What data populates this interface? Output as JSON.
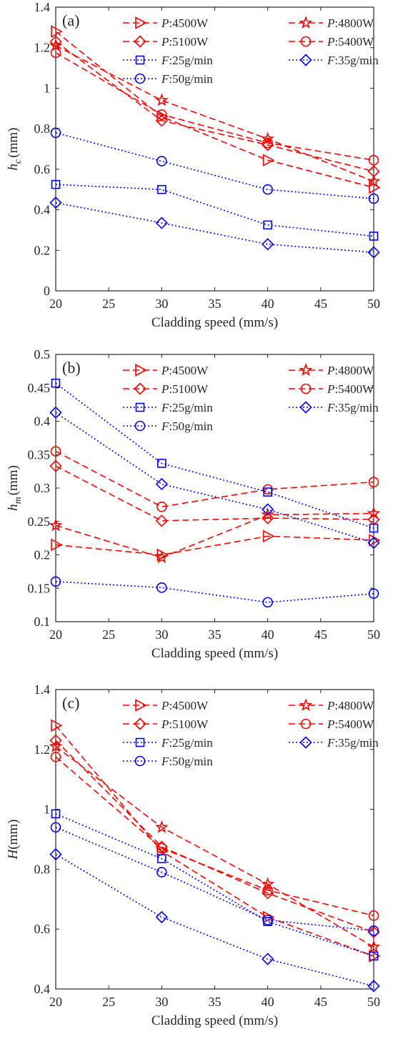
{
  "chart_data": [
    {
      "type": "line",
      "panel_label": "(a)",
      "xlabel": "Cladding speed (mm/s)",
      "ylabel": {
        "base": "h",
        "sub": "c",
        "unit": "(mm)"
      },
      "xlim": [
        20,
        50
      ],
      "ylim": [
        0,
        1.4
      ],
      "xticks": [
        "20",
        "25",
        "30",
        "35",
        "40",
        "45",
        "50"
      ],
      "yticks": [
        "0",
        "0.2",
        "0.4",
        "0.6",
        "0.8",
        "1",
        "1.2",
        "1.4"
      ],
      "grid": false,
      "legend_position": "top-right",
      "x": [
        20,
        30,
        40,
        50
      ],
      "series": [
        {
          "name": "P:4500W",
          "values": [
            1.28,
            0.86,
            0.645,
            0.51
          ],
          "color": "#ff0000",
          "marker": "triangle-right",
          "style": "dashed"
        },
        {
          "name": "P:4800W",
          "values": [
            1.21,
            0.94,
            0.75,
            0.54
          ],
          "color": "#ff0000",
          "marker": "pentagram",
          "style": "dashed"
        },
        {
          "name": "P:5100W",
          "values": [
            1.23,
            0.84,
            0.72,
            0.59
          ],
          "color": "#ff0000",
          "marker": "diamond",
          "style": "dashed"
        },
        {
          "name": "P:5400W",
          "values": [
            1.175,
            0.87,
            0.73,
            0.645
          ],
          "color": "#ff0000",
          "marker": "circle",
          "style": "dashed"
        },
        {
          "name": "F:25g/min",
          "values": [
            0.525,
            0.5,
            0.325,
            0.27
          ],
          "color": "#0000ff",
          "marker": "square",
          "style": "dotted"
        },
        {
          "name": "F:35g/min",
          "values": [
            0.435,
            0.335,
            0.23,
            0.19
          ],
          "color": "#0000ff",
          "marker": "diamond",
          "style": "dotted"
        },
        {
          "name": "F:50g/min",
          "values": [
            0.78,
            0.64,
            0.5,
            0.455
          ],
          "color": "#0000ff",
          "marker": "circle",
          "style": "dotted"
        }
      ]
    },
    {
      "type": "line",
      "panel_label": "(b)",
      "xlabel": "Cladding speed (mm/s)",
      "ylabel": {
        "base": "h",
        "sub": "m",
        "unit": "(mm)"
      },
      "xlim": [
        20,
        50
      ],
      "ylim": [
        0.1,
        0.5
      ],
      "xticks": [
        "20",
        "25",
        "30",
        "35",
        "40",
        "45",
        "50"
      ],
      "yticks": [
        "0.1",
        "0.15",
        "0.2",
        "0.25",
        "0.3",
        "0.35",
        "0.4",
        "0.45",
        "0.5"
      ],
      "grid": false,
      "legend_position": "top-right",
      "x": [
        20,
        30,
        40,
        50
      ],
      "series": [
        {
          "name": "P:4500W",
          "values": [
            0.215,
            0.2,
            0.228,
            0.222
          ],
          "color": "#ff0000",
          "marker": "triangle-right",
          "style": "dashed"
        },
        {
          "name": "P:4800W",
          "values": [
            0.244,
            0.196,
            0.26,
            0.262
          ],
          "color": "#ff0000",
          "marker": "pentagram",
          "style": "dashed"
        },
        {
          "name": "P:5100W",
          "values": [
            0.333,
            0.251,
            0.255,
            0.253
          ],
          "color": "#ff0000",
          "marker": "diamond",
          "style": "dashed"
        },
        {
          "name": "P:5400W",
          "values": [
            0.355,
            0.272,
            0.298,
            0.309
          ],
          "color": "#ff0000",
          "marker": "circle",
          "style": "dashed"
        },
        {
          "name": "F:25g/min",
          "values": [
            0.457,
            0.337,
            0.294,
            0.24
          ],
          "color": "#0000ff",
          "marker": "square",
          "style": "dotted"
        },
        {
          "name": "F:35g/min",
          "values": [
            0.413,
            0.306,
            0.268,
            0.218
          ],
          "color": "#0000ff",
          "marker": "diamond",
          "style": "dotted"
        },
        {
          "name": "F:50g/min",
          "values": [
            0.16,
            0.151,
            0.129,
            0.142
          ],
          "color": "#0000ff",
          "marker": "circle",
          "style": "dotted"
        }
      ]
    },
    {
      "type": "line",
      "panel_label": "(c)",
      "xlabel": "Cladding speed (mm/s)",
      "ylabel": {
        "base": "H",
        "sub": "",
        "unit": "(mm)"
      },
      "xlim": [
        20,
        50
      ],
      "ylim": [
        0.4,
        1.4
      ],
      "xticks": [
        "20",
        "25",
        "30",
        "35",
        "40",
        "45",
        "50"
      ],
      "yticks": [
        "0.4",
        "0.6",
        "0.8",
        "1",
        "1.2",
        "1.4"
      ],
      "grid": false,
      "legend_position": "top-right",
      "x": [
        20,
        30,
        40,
        50
      ],
      "series": [
        {
          "name": "P:4500W",
          "values": [
            1.28,
            0.86,
            0.64,
            0.51
          ],
          "color": "#ff0000",
          "marker": "triangle-right",
          "style": "dashed"
        },
        {
          "name": "P:4800W",
          "values": [
            1.21,
            0.94,
            0.75,
            0.54
          ],
          "color": "#ff0000",
          "marker": "pentagram",
          "style": "dashed"
        },
        {
          "name": "P:5100W",
          "values": [
            1.23,
            0.875,
            0.72,
            0.59
          ],
          "color": "#ff0000",
          "marker": "diamond",
          "style": "dashed"
        },
        {
          "name": "P:5400W",
          "values": [
            1.175,
            0.87,
            0.73,
            0.645
          ],
          "color": "#ff0000",
          "marker": "circle",
          "style": "dashed"
        },
        {
          "name": "F:25g/min",
          "values": [
            0.985,
            0.835,
            0.625,
            0.51
          ],
          "color": "#0000ff",
          "marker": "square",
          "style": "dotted"
        },
        {
          "name": "F:35g/min",
          "values": [
            0.85,
            0.64,
            0.5,
            0.41
          ],
          "color": "#0000ff",
          "marker": "diamond",
          "style": "dotted"
        },
        {
          "name": "F:50g/min",
          "values": [
            0.94,
            0.79,
            0.63,
            0.595
          ],
          "color": "#0000ff",
          "marker": "circle",
          "style": "dotted"
        }
      ]
    }
  ]
}
